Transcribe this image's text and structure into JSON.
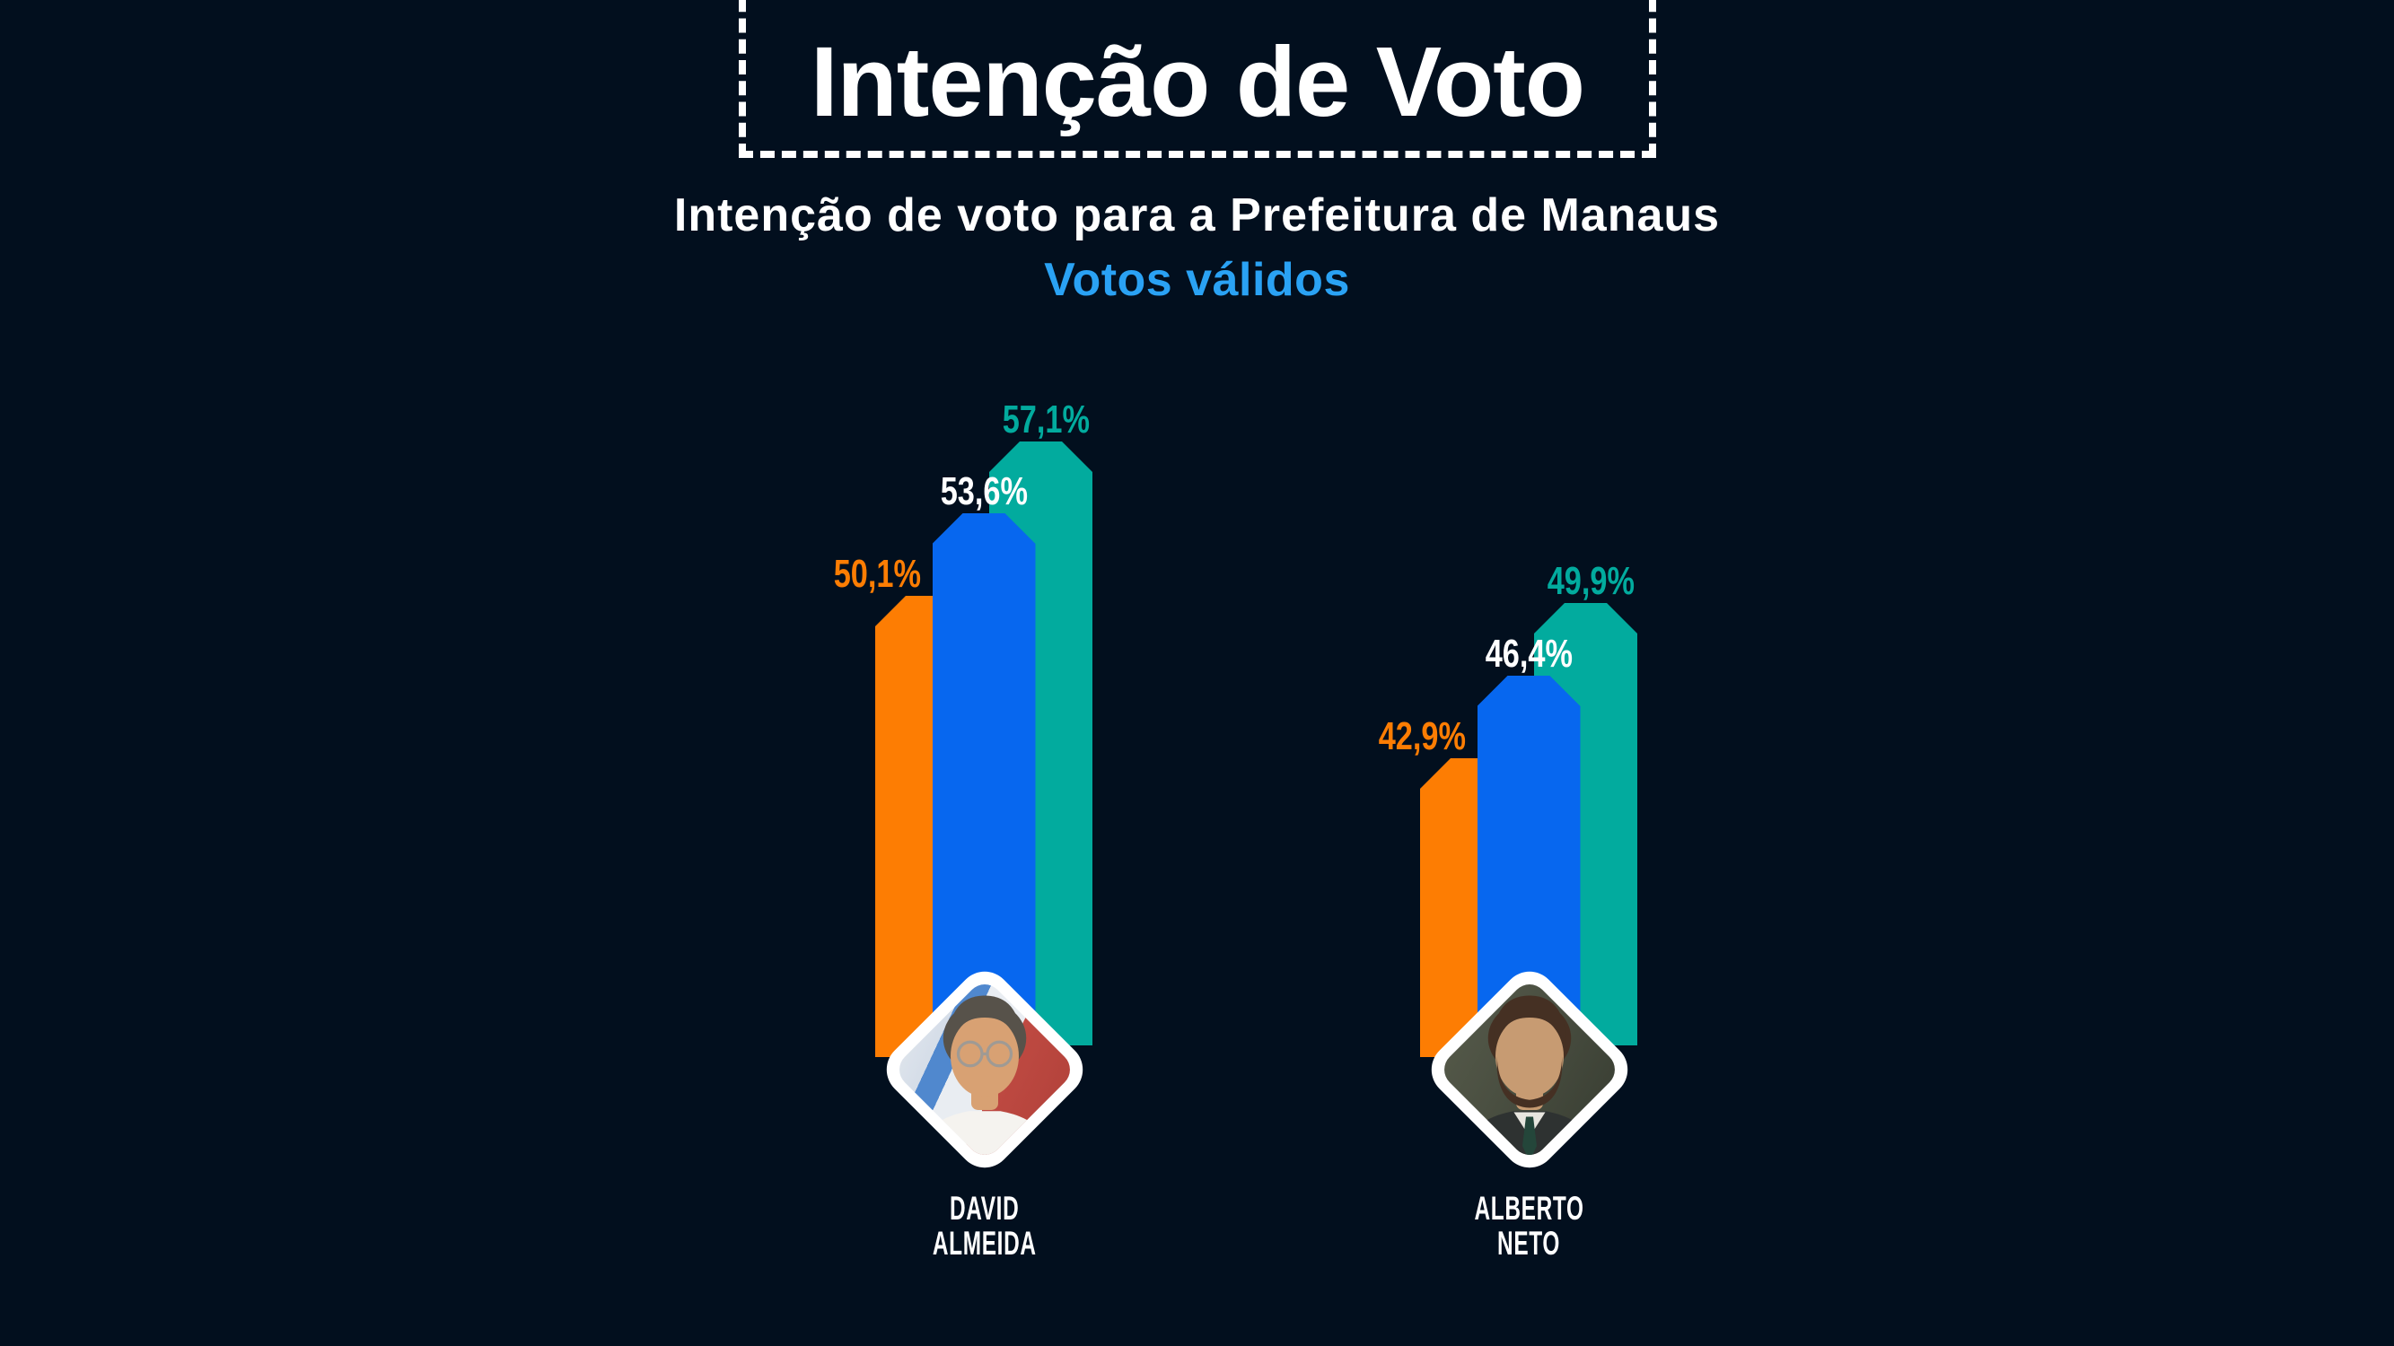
{
  "header": {
    "title": "Intenção de Voto",
    "subtitle": "Intenção de voto para a Prefeitura de Manaus",
    "note": "Votos válidos"
  },
  "colors": {
    "background": "#020f1e",
    "text_primary": "#ffffff",
    "note_blue": "#2aa2f4",
    "orange": "#fd7d03",
    "blue": "#0767ef",
    "teal": "#02ab9e",
    "white": "#ffffff",
    "photo_border": "#ffffff",
    "dashed_box_border": "#ffffff"
  },
  "chart_data": {
    "type": "bar",
    "title": "Intenção de Voto",
    "subtitle": "Intenção de voto para a Prefeitura de Manaus",
    "note": "Votos válidos",
    "unit": "percent",
    "value_format": "comma-decimal",
    "grid": false,
    "axes_visible": false,
    "legend": "none",
    "bar_style": "overlapping columns with chamfered tops, blue column in front",
    "categories": [
      "David Almeida",
      "Alberto Neto"
    ],
    "series": [
      {
        "color_key": "orange",
        "values": [
          50.1,
          42.9
        ],
        "labels": [
          "50,1%",
          "42,9%"
        ]
      },
      {
        "color_key": "blue",
        "values": [
          53.6,
          46.4
        ],
        "labels": [
          "53,6%",
          "46,4%"
        ]
      },
      {
        "color_key": "teal",
        "values": [
          57.1,
          49.9
        ],
        "labels": [
          "57,1%",
          "49,9%"
        ]
      }
    ],
    "groups": [
      {
        "candidate": "David Almeida",
        "name_lines": [
          "DAVID",
          "ALMEIDA"
        ],
        "bars": [
          {
            "color_key": "orange",
            "value": 50.1,
            "label": "50,1%",
            "label_color_key": "orange"
          },
          {
            "color_key": "blue",
            "value": 53.6,
            "label": "53,6%",
            "label_color_key": "white"
          },
          {
            "color_key": "teal",
            "value": 57.1,
            "label": "57,1%",
            "label_color_key": "teal"
          }
        ],
        "photo": {
          "alt": "Foto de David Almeida",
          "background": "linear-gradient(115deg, #3f80c9 0%, #4a8ad0 20%, #dfe5ec 20%, #d5dde8 32%, #5088ce 32%, #5088ce 40%, #e9edf2 40%, #e9edf2 55%, #bf4a42 55%, #a93c35 100%)",
          "hair": "#57524a",
          "skin": "#d8a173",
          "torso": "#f5f3ef",
          "beard": false,
          "glasses": true
        }
      },
      {
        "candidate": "Alberto Neto",
        "name_lines": [
          "ALBERTO",
          "NETO"
        ],
        "bars": [
          {
            "color_key": "orange",
            "value": 42.9,
            "label": "42,9%",
            "label_color_key": "orange"
          },
          {
            "color_key": "blue",
            "value": 46.4,
            "label": "46,4%",
            "label_color_key": "white"
          },
          {
            "color_key": "teal",
            "value": 49.9,
            "label": "49,9%",
            "label_color_key": "teal"
          }
        ],
        "photo": {
          "alt": "Foto de Alberto Neto",
          "background": "linear-gradient(120deg, #5c604f 0%, #4a4f41 45%, #31362c 100%)",
          "hair": "#453023",
          "skin": "#c79b72",
          "torso": "#2e3231",
          "beard": true,
          "glasses": false
        }
      }
    ]
  }
}
